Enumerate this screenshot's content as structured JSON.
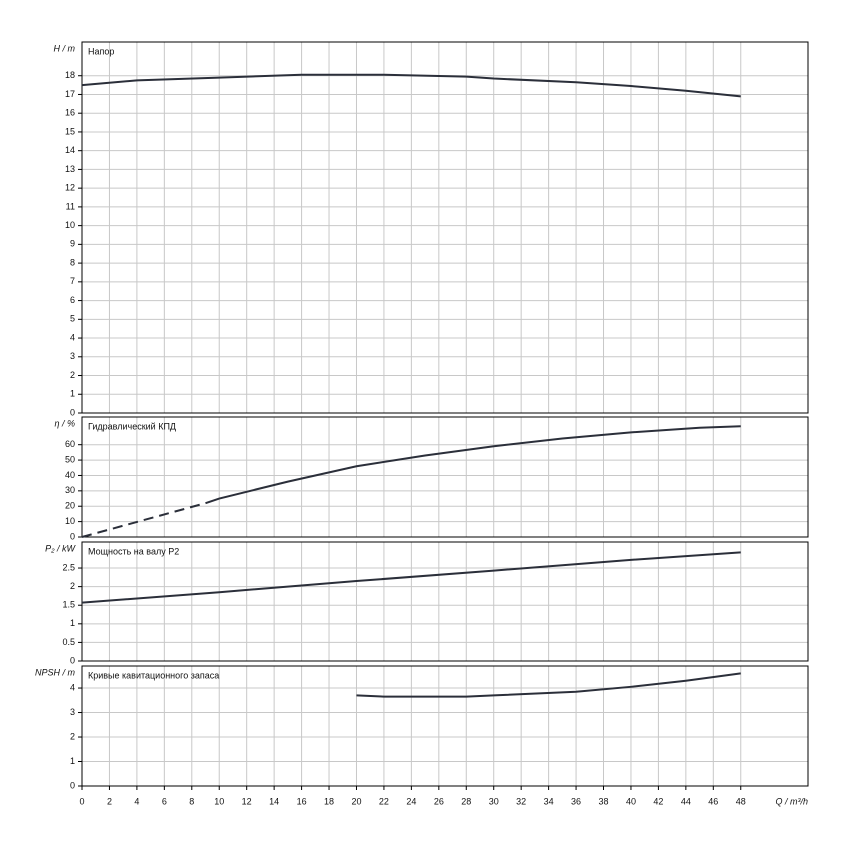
{
  "chart_data": [
    {
      "type": "line",
      "y_label": "H / m",
      "title": "Напор",
      "ylim": [
        0,
        19.8
      ],
      "yticks": [
        0,
        1,
        2,
        3,
        4,
        5,
        6,
        7,
        8,
        9,
        10,
        11,
        12,
        13,
        14,
        15,
        16,
        17,
        18
      ],
      "xlim": [
        0,
        52.9
      ],
      "x": [
        0,
        4,
        10,
        16,
        22,
        28,
        30,
        36,
        40,
        44,
        48
      ],
      "series": [
        {
          "color": "#2b2f3a",
          "values": [
            17.5,
            17.75,
            17.9,
            18.05,
            18.05,
            17.95,
            17.85,
            17.65,
            17.45,
            17.2,
            16.9
          ]
        }
      ]
    },
    {
      "type": "line",
      "y_label": "η / %",
      "title": "Гидравлический КПД",
      "ylim": [
        0,
        78
      ],
      "yticks": [
        0,
        10,
        20,
        30,
        40,
        50,
        60
      ],
      "xlim": [
        0,
        52.9
      ],
      "x": [
        0,
        9,
        10,
        15,
        20,
        25,
        30,
        35,
        40,
        45,
        48
      ],
      "series": [
        {
          "color": "#2b2f3a",
          "dashed": true,
          "values": [
            0,
            22,
            null,
            null,
            null,
            null,
            null,
            null,
            null,
            null,
            null
          ]
        },
        {
          "color": "#2b2f3a",
          "values": [
            null,
            22,
            25,
            36,
            46,
            53,
            59,
            64,
            68,
            71,
            72
          ]
        }
      ]
    },
    {
      "type": "line",
      "y_label": "P₂ / kW",
      "title": "Мощность на валу P2",
      "ylim": [
        0,
        3.2
      ],
      "yticks": [
        0,
        0.5,
        1,
        1.5,
        2,
        2.5
      ],
      "xlim": [
        0,
        52.9
      ],
      "x": [
        0,
        10,
        20,
        30,
        40,
        48
      ],
      "series": [
        {
          "color": "#2b2f3a",
          "values": [
            1.57,
            1.85,
            2.15,
            2.43,
            2.72,
            2.92
          ]
        }
      ]
    },
    {
      "type": "line",
      "y_label": "NPSH / m",
      "title": "Кривые кавитационного запаса",
      "ylim": [
        0,
        4.9
      ],
      "yticks": [
        0,
        1,
        2,
        3,
        4
      ],
      "xlim": [
        0,
        52.9
      ],
      "x_label": "Q / m³/h",
      "xticks": [
        0,
        2,
        4,
        6,
        8,
        10,
        12,
        14,
        16,
        18,
        20,
        22,
        24,
        26,
        28,
        30,
        32,
        34,
        36,
        38,
        40,
        42,
        44,
        46,
        48
      ],
      "x": [
        20,
        22,
        28,
        30,
        36,
        40,
        44,
        48
      ],
      "series": [
        {
          "color": "#2b2f3a",
          "values": [
            3.7,
            3.65,
            3.65,
            3.7,
            3.85,
            4.05,
            4.3,
            4.6
          ]
        }
      ]
    }
  ]
}
